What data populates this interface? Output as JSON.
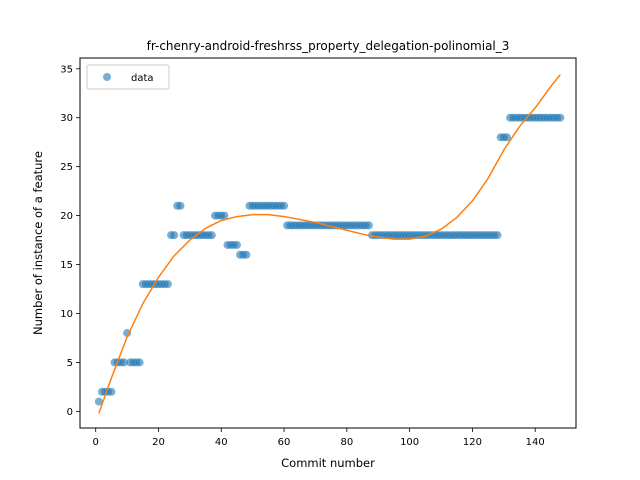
{
  "chart_data": {
    "type": "scatter",
    "title": "fr-chenry-android-freshrss_property_delegation-polinomial_3",
    "xlabel": "Commit number",
    "ylabel": "Number of instance of a feature",
    "xlim": [
      -5,
      153
    ],
    "ylim": [
      -1.7,
      36.1
    ],
    "xticks": [
      0,
      20,
      40,
      60,
      80,
      100,
      120,
      140
    ],
    "yticks": [
      0,
      5,
      10,
      15,
      20,
      25,
      30,
      35
    ],
    "legend": {
      "position": "top-left",
      "entries": [
        "data"
      ]
    },
    "grid": false,
    "colors": {
      "scatter": "#1f77b4",
      "fit": "#ff7f0e"
    },
    "series": [
      {
        "name": "data",
        "kind": "scatter",
        "points": [
          [
            1,
            1
          ],
          [
            2,
            2
          ],
          [
            3,
            2
          ],
          [
            4,
            2
          ],
          [
            5,
            2
          ],
          [
            6,
            5
          ],
          [
            7,
            5
          ],
          [
            8,
            5
          ],
          [
            9,
            5
          ],
          [
            10,
            8
          ],
          [
            11,
            5
          ],
          [
            12,
            5
          ],
          [
            13,
            5
          ],
          [
            14,
            5
          ],
          [
            15,
            13
          ],
          [
            16,
            13
          ],
          [
            17,
            13
          ],
          [
            18,
            13
          ],
          [
            19,
            13
          ],
          [
            20,
            13
          ],
          [
            21,
            13
          ],
          [
            22,
            13
          ],
          [
            23,
            13
          ],
          [
            24,
            18
          ],
          [
            25,
            18
          ],
          [
            26,
            21
          ],
          [
            27,
            21
          ],
          [
            28,
            18
          ],
          [
            29,
            18
          ],
          [
            30,
            18
          ],
          [
            31,
            18
          ],
          [
            32,
            18
          ],
          [
            33,
            18
          ],
          [
            34,
            18
          ],
          [
            35,
            18
          ],
          [
            36,
            18
          ],
          [
            37,
            18
          ],
          [
            38,
            20
          ],
          [
            39,
            20
          ],
          [
            40,
            20
          ],
          [
            41,
            20
          ],
          [
            42,
            17
          ],
          [
            43,
            17
          ],
          [
            44,
            17
          ],
          [
            45,
            17
          ],
          [
            46,
            16
          ],
          [
            47,
            16
          ],
          [
            48,
            16
          ],
          [
            49,
            21
          ],
          [
            50,
            21
          ],
          [
            51,
            21
          ],
          [
            52,
            21
          ],
          [
            53,
            21
          ],
          [
            54,
            21
          ],
          [
            55,
            21
          ],
          [
            56,
            21
          ],
          [
            57,
            21
          ],
          [
            58,
            21
          ],
          [
            59,
            21
          ],
          [
            60,
            21
          ],
          [
            61,
            19
          ],
          [
            62,
            19
          ],
          [
            63,
            19
          ],
          [
            64,
            19
          ],
          [
            65,
            19
          ],
          [
            66,
            19
          ],
          [
            67,
            19
          ],
          [
            68,
            19
          ],
          [
            69,
            19
          ],
          [
            70,
            19
          ],
          [
            71,
            19
          ],
          [
            72,
            19
          ],
          [
            73,
            19
          ],
          [
            74,
            19
          ],
          [
            75,
            19
          ],
          [
            76,
            19
          ],
          [
            77,
            19
          ],
          [
            78,
            19
          ],
          [
            79,
            19
          ],
          [
            80,
            19
          ],
          [
            81,
            19
          ],
          [
            82,
            19
          ],
          [
            83,
            19
          ],
          [
            84,
            19
          ],
          [
            85,
            19
          ],
          [
            86,
            19
          ],
          [
            87,
            19
          ],
          [
            88,
            18
          ],
          [
            89,
            18
          ],
          [
            90,
            18
          ],
          [
            91,
            18
          ],
          [
            92,
            18
          ],
          [
            93,
            18
          ],
          [
            94,
            18
          ],
          [
            95,
            18
          ],
          [
            96,
            18
          ],
          [
            97,
            18
          ],
          [
            98,
            18
          ],
          [
            99,
            18
          ],
          [
            100,
            18
          ],
          [
            101,
            18
          ],
          [
            102,
            18
          ],
          [
            103,
            18
          ],
          [
            104,
            18
          ],
          [
            105,
            18
          ],
          [
            106,
            18
          ],
          [
            107,
            18
          ],
          [
            108,
            18
          ],
          [
            109,
            18
          ],
          [
            110,
            18
          ],
          [
            111,
            18
          ],
          [
            112,
            18
          ],
          [
            113,
            18
          ],
          [
            114,
            18
          ],
          [
            115,
            18
          ],
          [
            116,
            18
          ],
          [
            117,
            18
          ],
          [
            118,
            18
          ],
          [
            119,
            18
          ],
          [
            120,
            18
          ],
          [
            121,
            18
          ],
          [
            122,
            18
          ],
          [
            123,
            18
          ],
          [
            124,
            18
          ],
          [
            125,
            18
          ],
          [
            126,
            18
          ],
          [
            127,
            18
          ],
          [
            128,
            18
          ],
          [
            129,
            28
          ],
          [
            130,
            28
          ],
          [
            131,
            28
          ],
          [
            132,
            30
          ],
          [
            133,
            30
          ],
          [
            134,
            30
          ],
          [
            135,
            30
          ],
          [
            136,
            30
          ],
          [
            137,
            30
          ],
          [
            138,
            30
          ],
          [
            139,
            30
          ],
          [
            140,
            30
          ],
          [
            141,
            30
          ],
          [
            142,
            30
          ],
          [
            143,
            30
          ],
          [
            144,
            30
          ],
          [
            145,
            30
          ],
          [
            146,
            30
          ],
          [
            147,
            30
          ],
          [
            148,
            30
          ]
        ]
      },
      {
        "name": "",
        "kind": "line",
        "x": [
          1,
          5,
          10,
          15,
          20,
          25,
          30,
          35,
          40,
          45,
          50,
          55,
          60,
          65,
          70,
          75,
          80,
          85,
          90,
          95,
          100,
          105,
          110,
          115,
          120,
          125,
          130,
          135,
          140,
          145,
          148
        ],
        "y": [
          -0.2,
          3.4,
          7.6,
          11.0,
          13.7,
          15.9,
          17.5,
          18.7,
          19.5,
          19.9,
          20.1,
          20.1,
          19.9,
          19.6,
          19.3,
          18.9,
          18.5,
          18.1,
          17.8,
          17.6,
          17.6,
          17.9,
          18.6,
          19.8,
          21.5,
          23.8,
          26.7,
          29.1,
          31.0,
          33.2,
          34.4
        ]
      }
    ]
  }
}
